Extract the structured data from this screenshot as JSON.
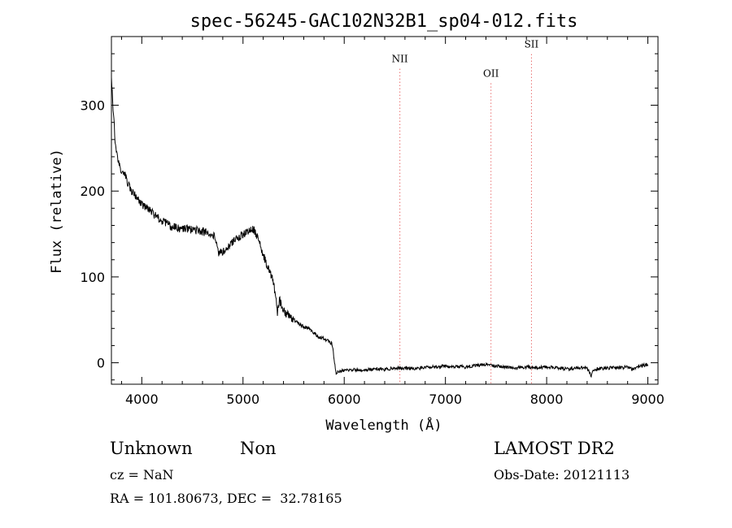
{
  "chart_data": {
    "type": "line",
    "title": "spec-56245-GAC102N32B1_sp04-012.fits",
    "xlabel": "Wavelength (Å)",
    "ylabel": "Flux (relative)",
    "xlim": [
      3700,
      9100
    ],
    "ylim": [
      -25,
      380
    ],
    "xticks": [
      4000,
      5000,
      6000,
      7000,
      8000,
      9000
    ],
    "yticks": [
      0,
      100,
      200,
      300
    ],
    "grid": false,
    "series": [
      {
        "color": "#000000",
        "x": [
          3700,
          3720,
          3740,
          3760,
          3780,
          3800,
          3830,
          3860,
          3900,
          3950,
          4000,
          4050,
          4100,
          4150,
          4200,
          4250,
          4300,
          4400,
          4500,
          4600,
          4700,
          4740,
          4760,
          4800,
          4850,
          4900,
          4950,
          5000,
          5050,
          5100,
          5130,
          5160,
          5200,
          5250,
          5300,
          5320,
          5340,
          5360,
          5380,
          5400,
          5450,
          5500,
          5550,
          5600,
          5650,
          5700,
          5750,
          5800,
          5850,
          5880,
          5900,
          5920,
          5950,
          6000,
          6100,
          6200,
          6300,
          6400,
          6500,
          6600,
          6700,
          6800,
          6900,
          7000,
          7100,
          7200,
          7300,
          7400,
          7500,
          7600,
          7700,
          7800,
          7900,
          8000,
          8100,
          8200,
          8300,
          8400,
          8440,
          8460,
          8500,
          8600,
          8700,
          8800,
          8850,
          8900,
          8950,
          9000
        ],
        "y": [
          330,
          290,
          250,
          240,
          230,
          225,
          220,
          210,
          200,
          192,
          185,
          180,
          175,
          170,
          165,
          162,
          158,
          156,
          155,
          153,
          150,
          140,
          128,
          130,
          135,
          140,
          145,
          150,
          152,
          155,
          150,
          140,
          125,
          110,
          95,
          80,
          55,
          75,
          65,
          60,
          55,
          50,
          45,
          42,
          40,
          35,
          30,
          28,
          25,
          22,
          5,
          -12,
          -10,
          -9,
          -8,
          -9,
          -7,
          -8,
          -6,
          -6,
          -7,
          -5,
          -5,
          -4,
          -4,
          -5,
          -3,
          -2,
          -4,
          -5,
          -6,
          -5,
          -6,
          -5,
          -6,
          -7,
          -6,
          -6,
          -15,
          -8,
          -7,
          -6,
          -6,
          -5,
          -8,
          -4,
          -3,
          -2
        ]
      }
    ],
    "annotations": [
      {
        "label": "NII",
        "x": 6550,
        "y": 350
      },
      {
        "label": "OII",
        "x": 7450,
        "y": 333
      },
      {
        "label": "SII",
        "x": 7850,
        "y": 367
      }
    ]
  },
  "info": {
    "class": "Unknown",
    "subclass": "Non",
    "survey": "LAMOST DR2",
    "cz": "cz = NaN",
    "obs_date": "Obs-Date: 20121113",
    "coords": "RA = 101.80673, DEC =  32.78165"
  }
}
